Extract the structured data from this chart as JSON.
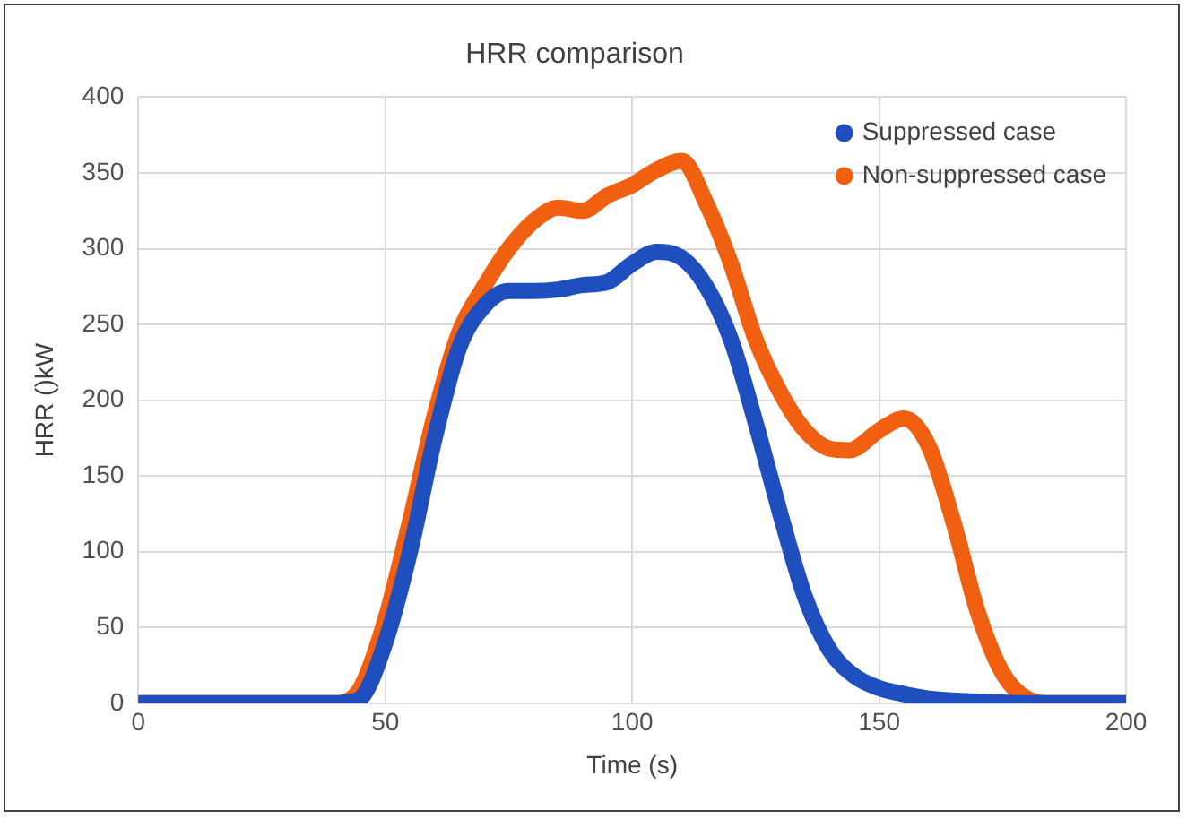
{
  "chart_data": {
    "type": "line",
    "title": "HRR comparison",
    "xlabel": "Time (s)",
    "ylabel": "HRR ()kW",
    "xlim": [
      0,
      200
    ],
    "xticks": [
      0,
      50,
      100,
      150,
      200
    ],
    "ylim": [
      0,
      400
    ],
    "yticks": [
      0,
      50,
      100,
      150,
      200,
      250,
      300,
      350,
      400
    ],
    "grid": true,
    "legend": "top right",
    "marker": "none",
    "series": [
      {
        "name": "Suppressed case",
        "color": "#1f4fbf",
        "x": [
          0,
          20,
          40,
          43,
          45,
          50,
          55,
          60,
          65,
          70,
          75,
          80,
          85,
          90,
          95,
          100,
          105,
          110,
          115,
          120,
          125,
          130,
          135,
          140,
          145,
          150,
          155,
          160,
          170,
          180,
          200
        ],
        "values": [
          0,
          0,
          0,
          1,
          3,
          40,
          100,
          175,
          235,
          262,
          272,
          272,
          273,
          276,
          278,
          290,
          298,
          294,
          275,
          240,
          185,
          125,
          70,
          35,
          18,
          10,
          6,
          3,
          1,
          0,
          0
        ]
      },
      {
        "name": "Non-suppressed case",
        "color": "#f06010",
        "x": [
          0,
          20,
          40,
          42,
          45,
          50,
          55,
          60,
          65,
          70,
          75,
          80,
          85,
          90,
          95,
          100,
          105,
          110,
          115,
          120,
          125,
          130,
          135,
          140,
          144,
          150,
          155,
          160,
          165,
          170,
          175,
          180,
          185,
          200
        ],
        "values": [
          0,
          0,
          0,
          1,
          10,
          55,
          120,
          190,
          245,
          275,
          300,
          318,
          327,
          325,
          335,
          342,
          352,
          358,
          330,
          290,
          240,
          205,
          180,
          168,
          167,
          180,
          188,
          170,
          120,
          60,
          20,
          3,
          0,
          0
        ]
      }
    ]
  }
}
